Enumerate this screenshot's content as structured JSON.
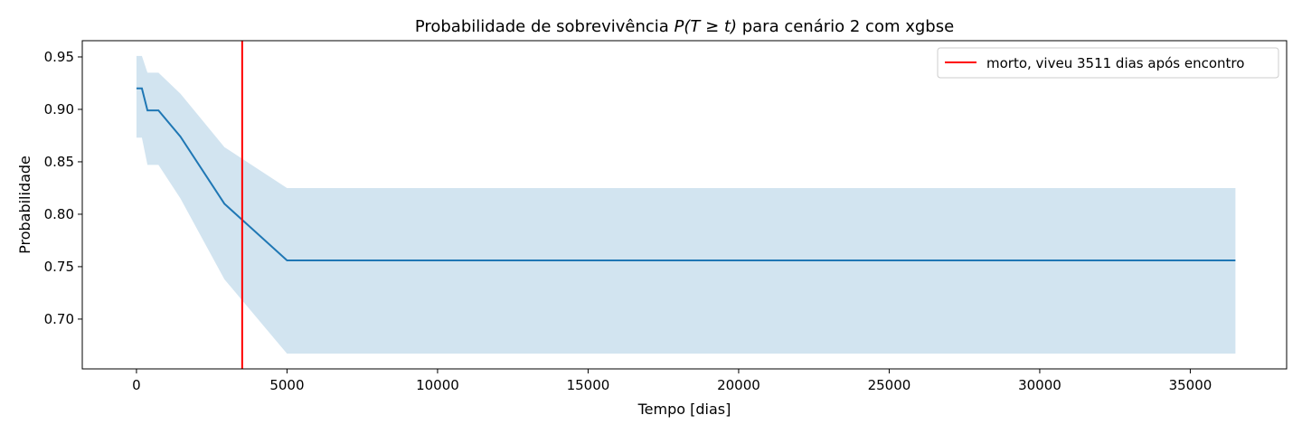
{
  "chart_data": {
    "type": "line",
    "title_prefix": "Probabilidade de sobrevivência ",
    "title_math": "P(T ≥ t)",
    "title_suffix": " para cenário 2 com xgbse",
    "xlabel": "Tempo [dias]",
    "ylabel": "Probabilidade",
    "xlim": [
      -1800,
      38200
    ],
    "ylim": [
      0.6525,
      0.9655
    ],
    "xticks": [
      0,
      5000,
      10000,
      15000,
      20000,
      25000,
      30000,
      35000
    ],
    "yticks": [
      0.7,
      0.75,
      0.8,
      0.85,
      0.9,
      0.95
    ],
    "ytick_labels": [
      "0.70",
      "0.75",
      "0.80",
      "0.85",
      "0.90",
      "0.95"
    ],
    "grid": false,
    "legend_position": "top-right",
    "series": [
      {
        "color": "#1f77b4",
        "x": [
          0,
          180,
          365,
          730,
          1460,
          2920,
          5000,
          36500
        ],
        "y": [
          0.92,
          0.92,
          0.899,
          0.899,
          0.874,
          0.81,
          0.756,
          0.756
        ],
        "lower": [
          0.873,
          0.873,
          0.847,
          0.847,
          0.815,
          0.738,
          0.667,
          0.667
        ],
        "upper": [
          0.951,
          0.951,
          0.935,
          0.935,
          0.915,
          0.864,
          0.825,
          0.825
        ],
        "band_color": "#1f77b4",
        "band_opacity": 0.2
      }
    ],
    "vline": {
      "x": 3511,
      "color": "#ff0000",
      "label": "morto, viveu 3511 dias após encontro"
    }
  }
}
